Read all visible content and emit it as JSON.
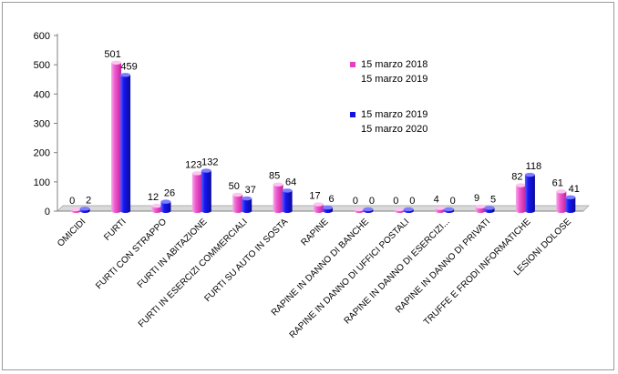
{
  "chart_data": {
    "type": "bar",
    "title": "",
    "xlabel": "",
    "ylabel": "",
    "ylim": [
      0,
      600
    ],
    "yticks": [
      0,
      100,
      200,
      300,
      400,
      500,
      600
    ],
    "grid": false,
    "legend_position": "inside-right",
    "categories": [
      "OMICIDI",
      "FURTI",
      "FURTI CON STRAPPO",
      "FURTI IN ABITAZIONE",
      "FURTI IN ESERCIZI COMMERCIALI",
      "FURTI SU AUTO IN SOSTA",
      "RAPINE",
      "RAPINE IN DANNO DI BANCHE",
      "RAPINE IN DANNO DI UFFICI POSTALI",
      "RAPINE IN DANNO DI ESERCIZI...",
      "RAPINE IN DANNO DI PRIVATI",
      "TRUFFE E FRODI INFORMATICHE",
      "LESIONI DOLOSE"
    ],
    "series": [
      {
        "name_line1": "15 marzo 2018",
        "name_line2": "15 marzo 2019",
        "color": "#e83ec0",
        "values": [
          0,
          501,
          12,
          123,
          50,
          85,
          17,
          0,
          0,
          4,
          9,
          82,
          61
        ]
      },
      {
        "name_line1": "15 marzo 2019",
        "name_line2": "15 marzo 2020",
        "color": "#1414e0",
        "values": [
          2,
          459,
          26,
          132,
          37,
          64,
          6,
          0,
          0,
          0,
          5,
          118,
          41
        ]
      }
    ]
  }
}
